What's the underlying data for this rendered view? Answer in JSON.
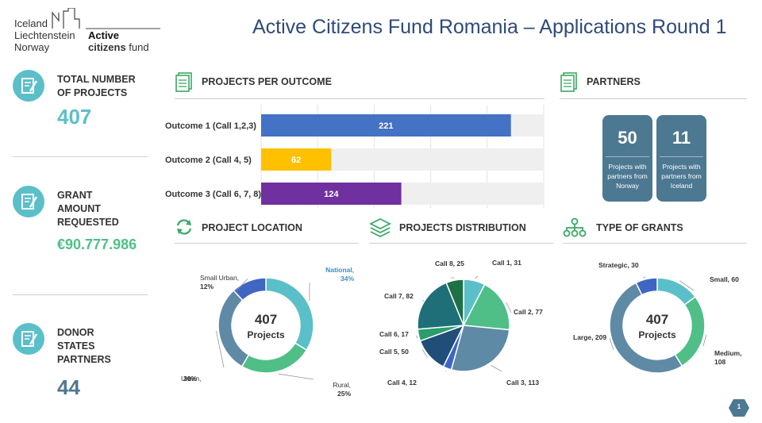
{
  "logo": {
    "countries": [
      "Iceland",
      "Liechtenstein",
      "Norway"
    ],
    "fund_line1": "Active",
    "fund_line2_bold": "citizens",
    "fund_line2_rest": " fund"
  },
  "page_title": "Active Citizens Fund Romania – Applications Round 1",
  "stats": [
    {
      "label_lines": [
        "TOTAL NUMBER",
        "OF PROJECTS"
      ],
      "value": "407",
      "icon": "document-edit-icon"
    },
    {
      "label_lines": [
        "GRANT",
        "AMOUNT",
        "REQUESTED"
      ],
      "value": "€90.777.986",
      "icon": "document-edit-icon"
    },
    {
      "label_lines": [
        "DONOR",
        "STATES",
        "PARTNERS"
      ],
      "value": "44",
      "icon": "document-edit-icon"
    }
  ],
  "sections": {
    "outcome": "PROJECTS PER OUTCOME",
    "partners": "PARTNERS",
    "location": "PROJECT LOCATION",
    "distribution": "PROJECTS DISTRIBUTION",
    "grants": "TYPE OF GRANTS"
  },
  "partners": [
    {
      "value": "50",
      "desc_lines": [
        "Projects with",
        "partners from",
        "Norway"
      ]
    },
    {
      "value": "11",
      "desc_lines": [
        "Projects with",
        "partners from",
        "Iceland"
      ]
    }
  ],
  "page_number": "1",
  "colors": {
    "title": "#2e4a7a",
    "stat_value": "#5bbfc9",
    "stat_value_dark": "#4d7891",
    "bar1": "#4472c4",
    "bar2": "#ffc000",
    "bar3": "#7030a0",
    "partner_box": "#4d7891"
  },
  "chart_data": [
    {
      "type": "bar",
      "orientation": "horizontal",
      "title": "PROJECTS PER OUTCOME",
      "categories": [
        "Outcome 1 (Call 1,2,3)",
        "Outcome 2 (Call 4, 5)",
        "Outcome 3 (Call 6, 7, 8)"
      ],
      "values": [
        221,
        62,
        124
      ],
      "colors": [
        "#4472c4",
        "#ffc000",
        "#7030a0"
      ],
      "xlim": [
        0,
        250
      ],
      "grid": true
    },
    {
      "type": "pie",
      "variant": "donut",
      "title": "PROJECT LOCATION",
      "center_value": "407",
      "center_label": "Projects",
      "slices": [
        {
          "label": "National,",
          "value_label": "34%",
          "value": 34,
          "color": "#5bbfc9"
        },
        {
          "label": "Rural,",
          "value_label": "25%",
          "value": 25,
          "color": "#4fbf87"
        },
        {
          "label": "Urban,",
          "value_label": "30%",
          "value": 30,
          "color": "#5f8aa6"
        },
        {
          "label": "Small Urban,",
          "value_label": "12%",
          "value": 12,
          "color": "#3f66c2"
        }
      ]
    },
    {
      "type": "pie",
      "title": "PROJECTS DISTRIBUTION",
      "slices": [
        {
          "label": "Call 1, 31",
          "value": 31,
          "color": "#5bbfc9"
        },
        {
          "label": "Call 2, 77",
          "value": 77,
          "color": "#4fbf87"
        },
        {
          "label": "Call 3, 113",
          "value": 113,
          "color": "#5f8aa6"
        },
        {
          "label": "Call 4, 12",
          "value": 12,
          "color": "#3f66c2"
        },
        {
          "label": "Call 5, 50",
          "value": 50,
          "color": "#1f4e79"
        },
        {
          "label": "Call 6, 17",
          "value": 17,
          "color": "#2a9d6b"
        },
        {
          "label": "Call 7, 82",
          "value": 82,
          "color": "#1f6f78"
        },
        {
          "label": "Call 8, 25",
          "value": 25,
          "color": "#1e7045"
        }
      ]
    },
    {
      "type": "pie",
      "variant": "donut",
      "title": "TYPE OF GRANTS",
      "center_value": "407",
      "center_label": "Projects",
      "slices": [
        {
          "label": "Small, 60",
          "value": 60,
          "color": "#5bbfc9"
        },
        {
          "label": "Medium,",
          "value_label": "108",
          "value": 108,
          "color": "#4fbf87"
        },
        {
          "label": "Large, 209",
          "value": 209,
          "color": "#5f8aa6"
        },
        {
          "label": "Strategic, 30",
          "value": 30,
          "color": "#3f66c2"
        }
      ]
    }
  ]
}
